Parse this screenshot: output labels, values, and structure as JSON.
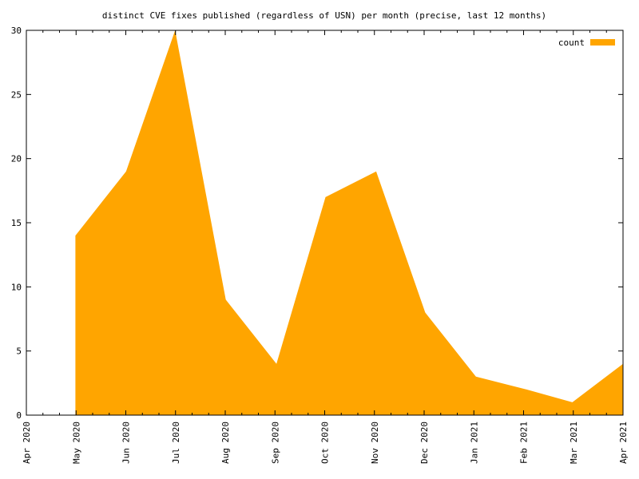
{
  "chart_data": {
    "type": "area",
    "title": "distinct CVE fixes published (regardless of USN) per month (precise, last 12 months)",
    "xlabel": "",
    "ylabel": "",
    "x_ticks": [
      "Apr 2020",
      "May 2020",
      "Jun 2020",
      "Jul 2020",
      "Aug 2020",
      "Sep 2020",
      "Oct 2020",
      "Nov 2020",
      "Dec 2020",
      "Jan 2021",
      "Feb 2021",
      "Mar 2021",
      "Apr 2021"
    ],
    "xlim": [
      "2020-04-01",
      "2021-04-01"
    ],
    "ylim": [
      0,
      30
    ],
    "y_ticks": [
      0,
      5,
      10,
      15,
      20,
      25,
      30
    ],
    "grid": false,
    "legend": "top-right",
    "series": [
      {
        "name": "count",
        "color": "#ffa500",
        "x": [
          "2020-05-01",
          "2020-06-01",
          "2020-07-01",
          "2020-08-01",
          "2020-09-01",
          "2020-10-01",
          "2020-11-01",
          "2020-12-01",
          "2021-01-01",
          "2021-02-01",
          "2021-03-01",
          "2021-04-01"
        ],
        "values": [
          14,
          19,
          30,
          9,
          4,
          17,
          19,
          8,
          3,
          2,
          1,
          4
        ]
      }
    ]
  }
}
